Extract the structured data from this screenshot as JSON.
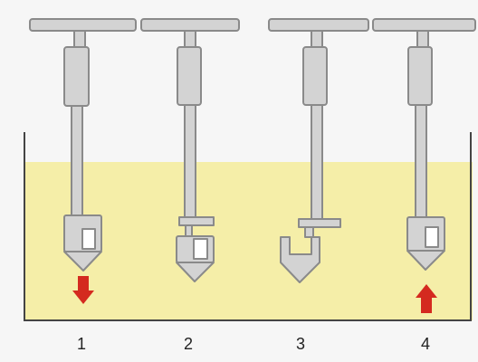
{
  "colors": {
    "background": "#f6f6f6",
    "liquid": "#f5eea8",
    "tool_fill": "#d3d3d3",
    "tool_stroke": "#8a8a8a",
    "container_wall": "#444444",
    "arrow": "#d42a1f"
  },
  "steps": [
    {
      "label": "1",
      "arrow": "down",
      "sampler": "closed"
    },
    {
      "label": "2",
      "arrow": "",
      "sampler": "closing"
    },
    {
      "label": "3",
      "arrow": "",
      "sampler": "open"
    },
    {
      "label": "4",
      "arrow": "up",
      "sampler": "closed"
    }
  ]
}
